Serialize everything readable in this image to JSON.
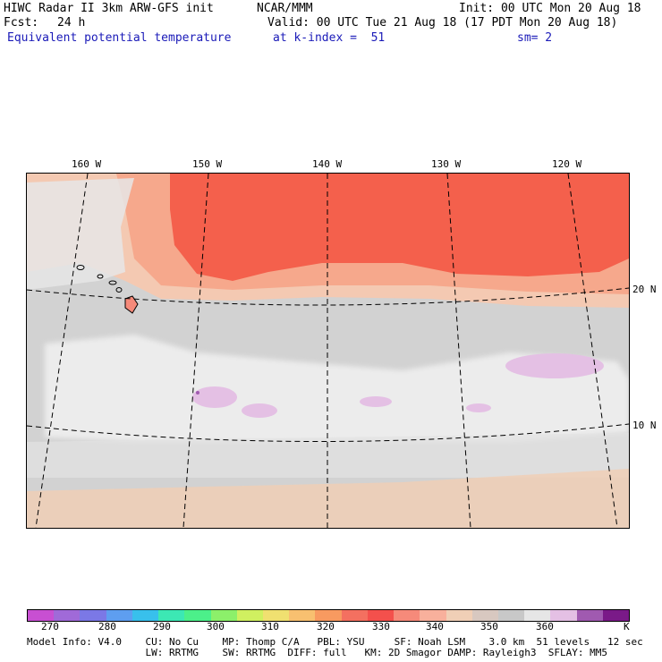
{
  "header": {
    "title": "HIWC Radar II 3km ARW-GFS init",
    "org": "NCAR/MMM",
    "init": "Init: 00 UTC Mon 20 Aug 18",
    "fcst_label": "Fcst:",
    "fcst_value": "24 h",
    "valid": "Valid: 00 UTC Tue 21 Aug 18 (17 PDT Mon 20 Aug 18)",
    "field": "Equivalent potential temperature",
    "kindex": "at k-index =  51",
    "sm": "sm= 2"
  },
  "map": {
    "lon_labels": [
      "160 W",
      "150 W",
      "140 W",
      "130 W",
      "120 W"
    ],
    "lat_labels": [
      "20 N",
      "10 N"
    ]
  },
  "colorbar": {
    "colors": [
      "#c84fd2",
      "#a06ad8",
      "#7b78e6",
      "#5e9ef0",
      "#38c0ec",
      "#3ce8b4",
      "#4cf08a",
      "#8cf06a",
      "#d0f060",
      "#f0e070",
      "#f8c070",
      "#f89a60",
      "#f47060",
      "#f4504c",
      "#f68a7a",
      "#f8b09c",
      "#f0cfb6",
      "#d8c8c0",
      "#c8c8c8",
      "#e6e6e6",
      "#e4c0e4",
      "#a05ab0",
      "#7a1a88"
    ],
    "tick_labels": [
      "270",
      "280",
      "290",
      "300",
      "310",
      "320",
      "330",
      "340",
      "350",
      "360",
      "K"
    ]
  },
  "footer": {
    "line1": "Model Info: V4.0    CU: No Cu    MP: Thomp C/A   PBL: YSU     SF: Noah LSM    3.0 km  51 levels   12 sec",
    "line2": "                    LW: RRTMG    SW: RRTMG  DIFF: full   KM: 2D Smagor DAMP: Rayleigh3  SFLAY: MM5"
  }
}
